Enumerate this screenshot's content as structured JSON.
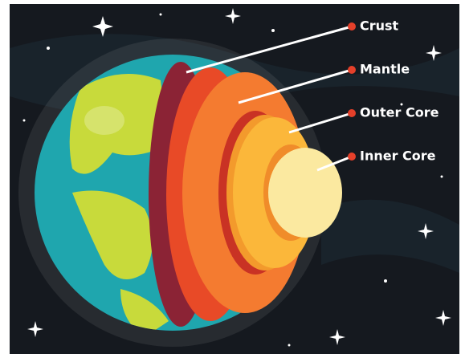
{
  "labels": [
    "Crust",
    "Mantle",
    "Outer Core",
    "Inner Core"
  ]
}
